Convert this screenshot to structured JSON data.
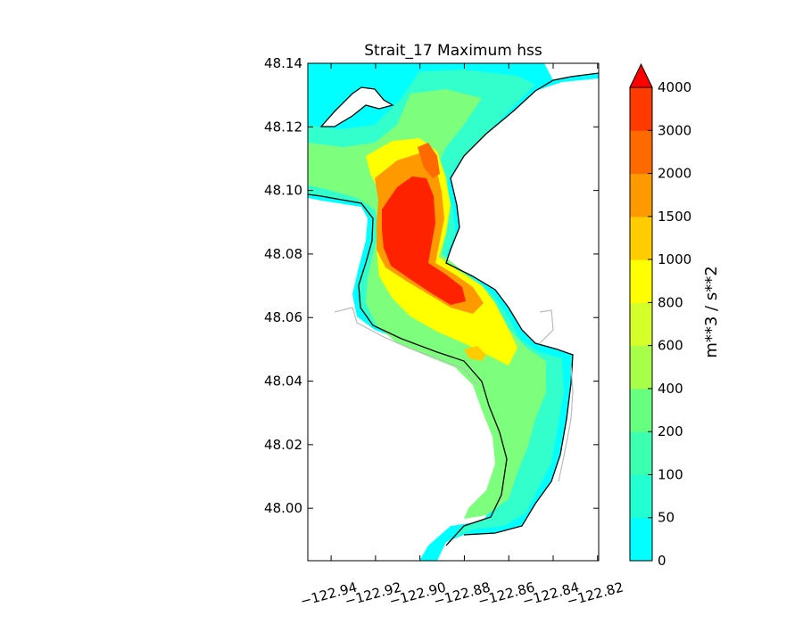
{
  "figure": {
    "title": "Strait_17 Maximum hss",
    "colorbar_label": "m**3 / s**2"
  },
  "axes": {
    "y_ticks": [
      "48.14",
      "48.12",
      "48.10",
      "48.08",
      "48.06",
      "48.04",
      "48.02",
      "48.00"
    ],
    "y_tick_values": [
      48.14,
      48.12,
      48.1,
      48.08,
      48.06,
      48.04,
      48.02,
      48.0
    ],
    "x_ticks": [
      "−122.94",
      "−122.92",
      "−122.90",
      "−122.88",
      "−122.86",
      "−122.84",
      "−122.82"
    ],
    "x_tick_values": [
      -122.94,
      -122.92,
      -122.9,
      -122.88,
      -122.86,
      -122.84,
      -122.82
    ],
    "x_range": [
      -122.9505,
      -122.8195
    ],
    "y_range": [
      47.9835,
      48.14
    ]
  },
  "colorbar": {
    "labels": [
      "0",
      "50",
      "100",
      "200",
      "400",
      "600",
      "800",
      "1000",
      "1500",
      "2000",
      "3000",
      "4000"
    ],
    "colors": [
      "#00ffff",
      "#22ffd0",
      "#3dffb0",
      "#66ff80",
      "#a8ff4a",
      "#d4ff2a",
      "#ffff00",
      "#ffcc00",
      "#ff9900",
      "#ff6a00",
      "#ff3a00",
      "#ff0000"
    ],
    "extend": "max"
  },
  "map_colors": {
    "land": "#ffffff",
    "low": "#00ffff",
    "medium_low": "#33ffcc",
    "medium": "#7dff7d",
    "yellow": "#ffff00",
    "orange": "#ff9900",
    "red": "#ff2200",
    "coast": "#000000",
    "coast_alt": "#bbbbbb"
  }
}
